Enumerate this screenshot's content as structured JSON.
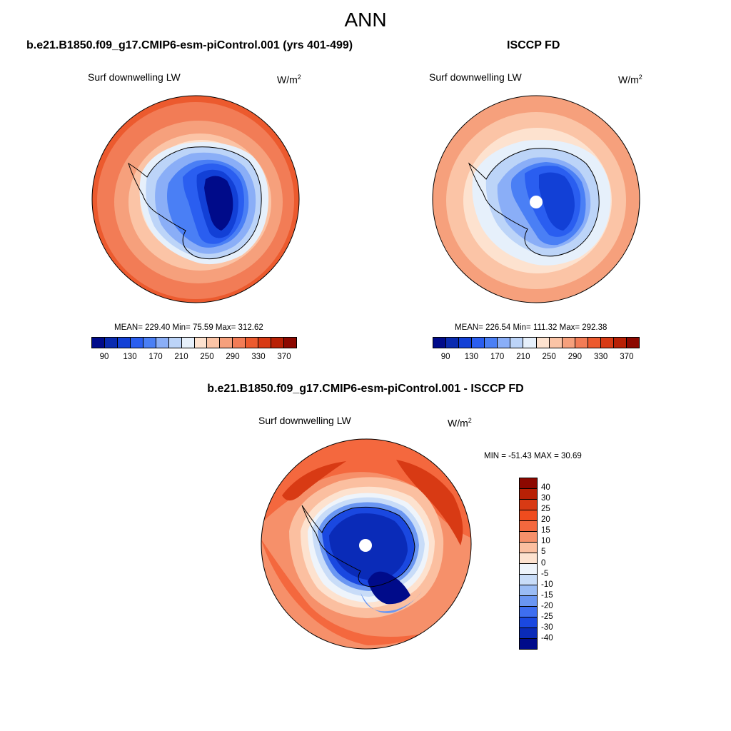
{
  "title": "ANN",
  "panels": [
    {
      "case_title": "b.e21.B1850.f09_g17.CMIP6-esm-piControl.001 (yrs 401-499)",
      "var_label": "Surf downwelling LW",
      "units": "W/m",
      "units_sup": "2",
      "stats": "MEAN= 229.40  Min=  75.59  Max= 312.62",
      "colorbar_ticks": [
        "90",
        "130",
        "170",
        "210",
        "250",
        "290",
        "330",
        "370"
      ]
    },
    {
      "case_title": "ISCCP FD",
      "var_label": "Surf downwelling LW",
      "units": "W/m",
      "units_sup": "2",
      "stats": "MEAN= 226.54  Min= 111.32  Max= 292.38",
      "colorbar_ticks": [
        "90",
        "130",
        "170",
        "210",
        "250",
        "290",
        "330",
        "370"
      ]
    }
  ],
  "diff_panel": {
    "case_title": "b.e21.B1850.f09_g17.CMIP6-esm-piControl.001 - ISCCP FD",
    "var_label": "Surf downwelling LW",
    "units": "W/m",
    "units_sup": "2",
    "stats": "MIN = -51.43 MAX =  30.69",
    "colorbar_ticks": [
      "40",
      "30",
      "25",
      "20",
      "15",
      "10",
      "5",
      "0",
      "-5",
      "-10",
      "-15",
      "-20",
      "-25",
      "-30",
      "-40"
    ]
  },
  "colors": {
    "abs_scale": [
      "#000b8a",
      "#0a2bb0",
      "#1240d6",
      "#2a5ef0",
      "#4a7ff5",
      "#8aaef7",
      "#bcd4f8",
      "#e6f0fb",
      "#fde2cf",
      "#fbc4a6",
      "#f6a07c",
      "#f27c56",
      "#ec5a2e",
      "#d83a14",
      "#b82005",
      "#8c0800"
    ],
    "diff_scale": [
      "#8c0800",
      "#b82005",
      "#d83a14",
      "#f04c1e",
      "#f4683e",
      "#f6906a",
      "#fbbfa0",
      "#fde2cf",
      "#eef4fb",
      "#c8dcf8",
      "#9abcf5",
      "#6a96f2",
      "#3e6ef0",
      "#1a48e0",
      "#0a2bb8",
      "#000b8a"
    ]
  }
}
